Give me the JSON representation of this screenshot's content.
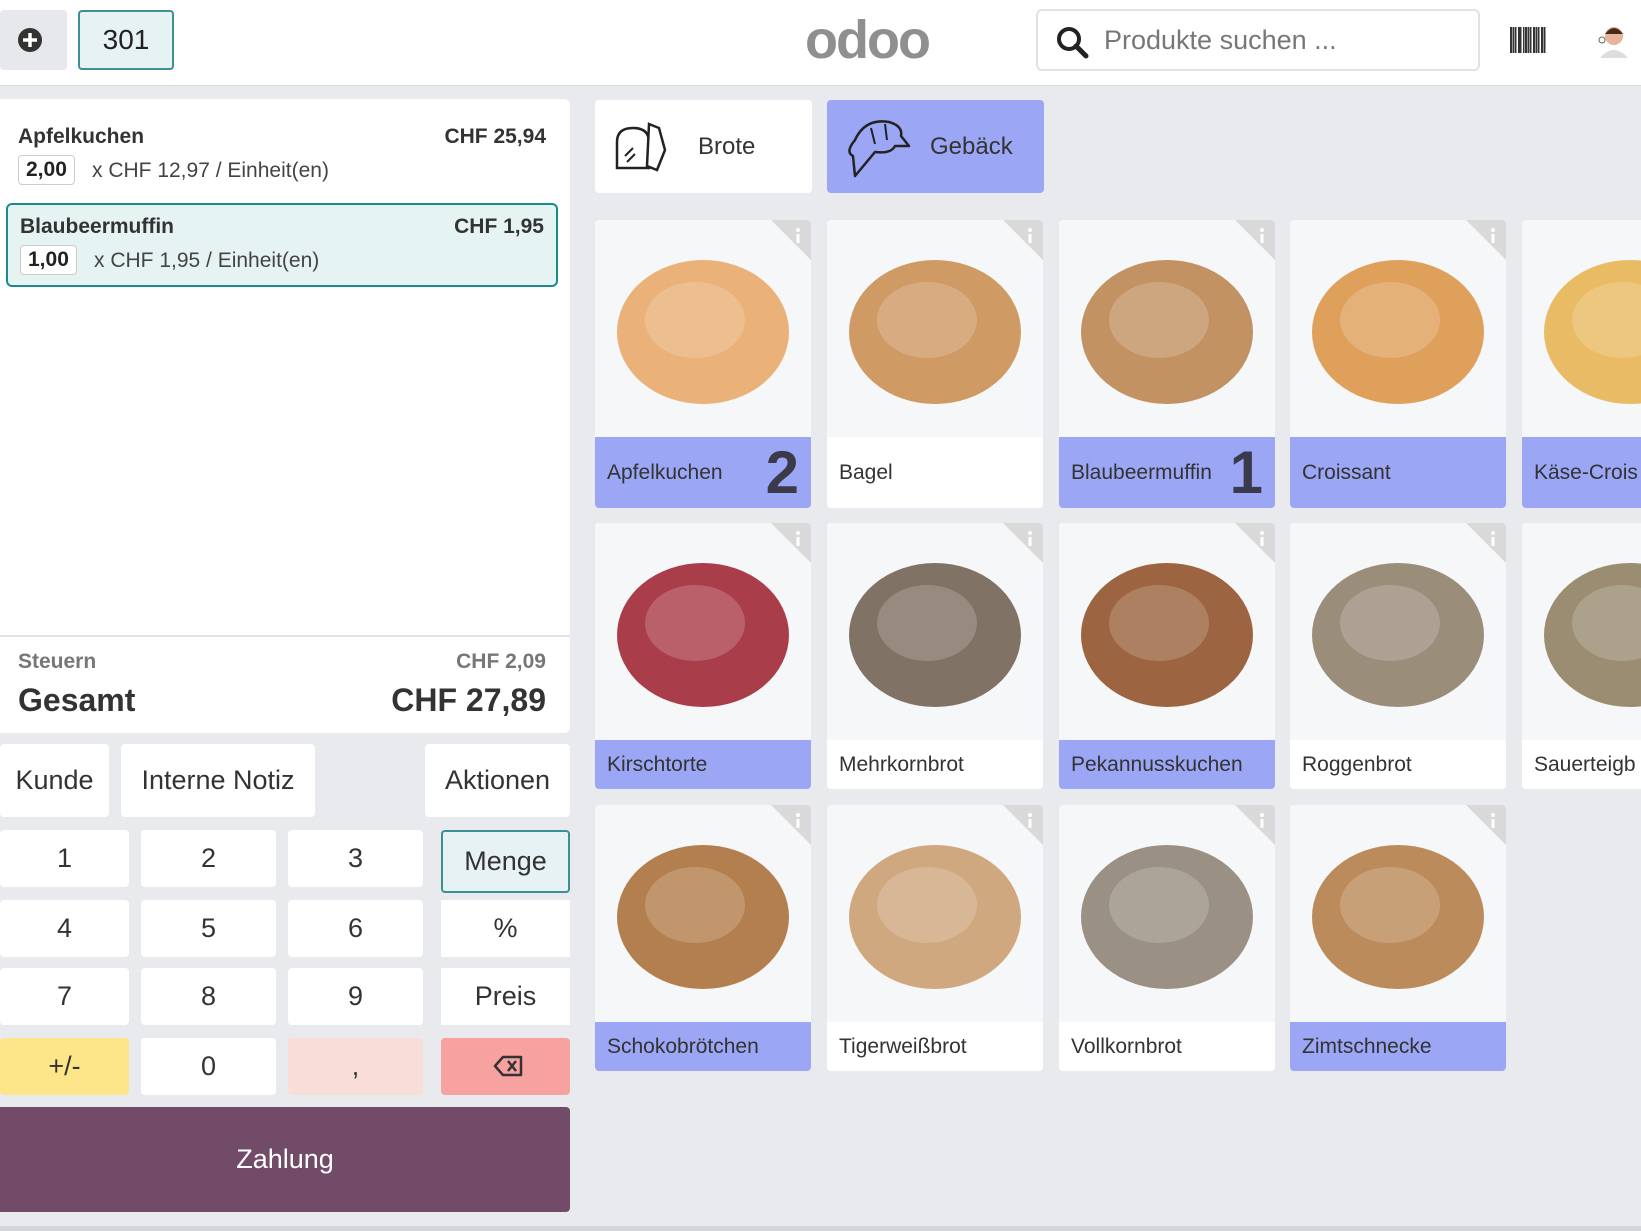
{
  "header": {
    "table": "301",
    "logo": "odoo",
    "search_placeholder": "Produkte suchen ..."
  },
  "order": {
    "lines": [
      {
        "name": "Apfelkuchen",
        "price": "CHF 25,94",
        "qty": "2,00",
        "unit": "x CHF 12,97 / Einheit(en)",
        "selected": false
      },
      {
        "name": "Blaubeermuffin",
        "price": "CHF 1,95",
        "qty": "1,00",
        "unit": "x CHF 1,95 / Einheit(en)",
        "selected": true
      }
    ],
    "taxes_label": "Steuern",
    "taxes": "CHF 2,09",
    "total_label": "Gesamt",
    "total": "CHF 27,89"
  },
  "actions": [
    "Kunde",
    "Interne Notiz",
    "Aktionen"
  ],
  "numpad": [
    "1",
    "2",
    "3",
    "Menge",
    "4",
    "5",
    "6",
    "%",
    "7",
    "8",
    "9",
    "Preis",
    "+/-",
    "0",
    ","
  ],
  "payment": "Zahlung",
  "categories": [
    {
      "name": "Brote",
      "selected": false
    },
    {
      "name": "Gebäck",
      "selected": true
    }
  ],
  "products": [
    {
      "name": "Apfelkuchen",
      "selected": true,
      "qty": 2
    },
    {
      "name": "Bagel",
      "selected": false
    },
    {
      "name": "Blaubeermuffin",
      "selected": true,
      "qty": 1
    },
    {
      "name": "Croissant",
      "selected": true
    },
    {
      "name": "Käse-Crois",
      "selected": true
    },
    {
      "name": "Kirschtorte",
      "selected": true
    },
    {
      "name": "Mehrkornbrot",
      "selected": false
    },
    {
      "name": "Pekannusskuchen",
      "selected": true
    },
    {
      "name": "Roggenbrot",
      "selected": false
    },
    {
      "name": "Sauerteigb",
      "selected": false
    },
    {
      "name": "Schokobrötchen",
      "selected": true
    },
    {
      "name": "Tigerweißbrot",
      "selected": false
    },
    {
      "name": "Vollkornbrot",
      "selected": false
    },
    {
      "name": "Zimtschnecke",
      "selected": true
    }
  ]
}
